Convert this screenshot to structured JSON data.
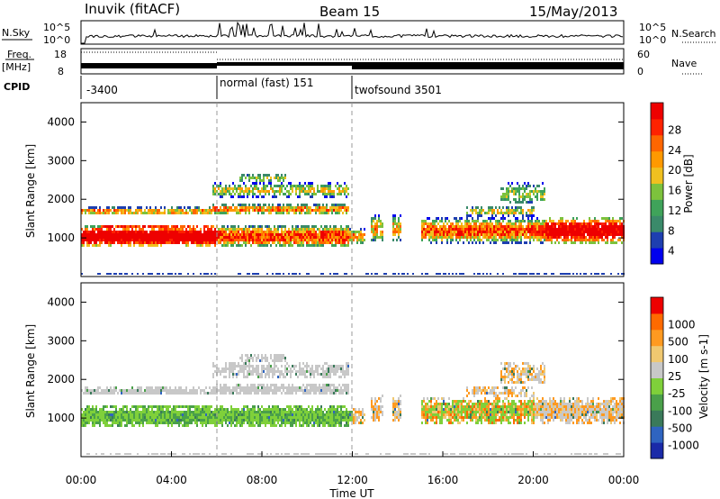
{
  "header": {
    "station": "Inuvik (fitACF)",
    "beam": "Beam 15",
    "date": "15/May/2013"
  },
  "top_panels": {
    "nsky_label": "N.Sky",
    "nsky_ticks": [
      "10^5",
      "10^0"
    ],
    "nsearch_label": "N.Search",
    "nsearch_ticks": [
      "10^5",
      "10^0"
    ],
    "freq_label_1": "Freq.",
    "freq_label_2": "[MHz]",
    "freq_ticks": [
      "18",
      "8"
    ],
    "nave_label": "Nave",
    "nave_ticks": [
      "60",
      "0"
    ],
    "cpid_label": "CPID",
    "cpid_segments": [
      {
        "label": "-3400",
        "start_hour": 0,
        "end_hour": 6
      },
      {
        "label": "normal (fast) 151",
        "start_hour": 6,
        "end_hour": 12
      },
      {
        "label": "twofsound 3501",
        "start_hour": 12,
        "end_hour": 24
      }
    ]
  },
  "colors": {
    "power": [
      "#0000ee",
      "#1e3fb0",
      "#3a8a6a",
      "#3fa35a",
      "#7dc23d",
      "#f0c020",
      "#ff9900",
      "#ff6600",
      "#ff2200",
      "#ee0000"
    ],
    "velocity": [
      "#1a2aa8",
      "#2f64c0",
      "#3a7a5a",
      "#4aa04a",
      "#7fd03a",
      "#c8c8c8",
      "#f0c870",
      "#ff9a20",
      "#ff6a00",
      "#ee0000"
    ]
  },
  "chart_data": [
    {
      "type": "heatmap",
      "panel": "power",
      "xlabel": "",
      "ylabel": "Slant Range [km]",
      "xlim": [
        "00:00",
        "24:00"
      ],
      "ylim": [
        0,
        4500
      ],
      "y_ticks": [
        "4000",
        "3000",
        "2000",
        "1000"
      ],
      "colorbar_label": "Power [dB]",
      "colorbar_ticks": [
        "28",
        "24",
        "20",
        "16",
        "12",
        "8",
        "4"
      ],
      "colorbar_range": [
        0,
        32
      ]
    },
    {
      "type": "heatmap",
      "panel": "velocity",
      "xlabel": "Time UT",
      "ylabel": "Slant Range [km]",
      "xlim": [
        "00:00",
        "24:00"
      ],
      "ylim": [
        0,
        4500
      ],
      "x_ticks": [
        "00:00",
        "04:00",
        "08:00",
        "12:00",
        "16:00",
        "20:00",
        "00:00"
      ],
      "y_ticks": [
        "4000",
        "3000",
        "2000",
        "1000"
      ],
      "colorbar_label": "Velocity [m s-1]",
      "colorbar_ticks": [
        "1000",
        "500",
        "100",
        "25",
        "-25",
        "-100",
        "-500",
        "-1000"
      ]
    }
  ]
}
